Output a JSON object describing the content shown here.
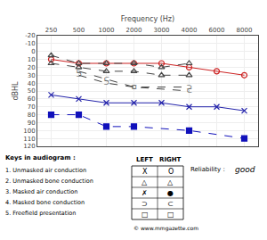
{
  "chart_data": {
    "type": "line",
    "xlabel": "Frequency (Hz)",
    "ylabel": "dBHL",
    "categories": [
      250,
      500,
      1000,
      2000,
      3000,
      4000,
      6000,
      8000
    ],
    "ylim": [
      120,
      -20
    ],
    "yticks": [
      -20,
      -10,
      0,
      10,
      20,
      30,
      40,
      50,
      60,
      70,
      80,
      90,
      100,
      110,
      120
    ],
    "grid": true,
    "series": [
      {
        "x": [
          250,
          500,
          1000,
          2000,
          3000,
          4000,
          6000,
          8000
        ],
        "values": [
          10,
          15,
          15,
          15,
          15,
          20,
          25,
          30
        ],
        "color": "#cc2222",
        "marker": "circle",
        "line_style": "solid"
      },
      {
        "x": [
          250,
          500,
          1000,
          2000,
          3000,
          4000,
          6000,
          8000
        ],
        "values": [
          55,
          60,
          65,
          65,
          65,
          70,
          70,
          75
        ],
        "color": "#2222aa",
        "marker": "x",
        "line_style": "solid"
      },
      {
        "x": [
          250,
          500,
          1000,
          2000,
          3000,
          4000
        ],
        "values": [
          5,
          15,
          15,
          15,
          20,
          15
        ],
        "color": "#444444",
        "marker": "triangle",
        "line_style": "dashed"
      },
      {
        "x": [
          250,
          500,
          1000,
          2000,
          3000,
          4000
        ],
        "values": [
          15,
          20,
          25,
          25,
          30,
          30
        ],
        "color": "#444444",
        "marker": "triangle",
        "line_style": "dashed"
      },
      {
        "x": [
          250,
          500,
          1000,
          2000,
          4000,
          8000
        ],
        "values": [
          80,
          80,
          95,
          95,
          100,
          110
        ],
        "color": "#1111bb",
        "marker": "square",
        "line_style": "dashed"
      },
      {
        "x": [
          500,
          1000,
          2000,
          4000
        ],
        "values": [
          30,
          40,
          45,
          45
        ],
        "color": "#444444",
        "marker": "⊃",
        "line_style": "dashed"
      },
      {
        "x": [
          500,
          1000,
          2000,
          4000
        ],
        "values": [
          25,
          35,
          45,
          50
        ],
        "color": "#444444",
        "marker": "⊂",
        "line_style": "dashed"
      }
    ],
    "annotations": {
      "heading": "Keys in audiogram :",
      "legend_keys": [
        "1. Unmasked air conduction",
        "2. Unmasked bone conduction",
        "3. Masked air conduction",
        "4. Masked bone conduction",
        "5. Freefield presentation"
      ],
      "columns": [
        "LEFT",
        "RIGHT"
      ],
      "legend_left": [
        "X",
        "△",
        "✗",
        "⊃",
        "□"
      ],
      "legend_right": [
        "O",
        "△",
        "●",
        "⊂",
        "□"
      ],
      "reliability": [
        "Reliability :",
        "good"
      ],
      "watermark": "© www.mmgazette.com"
    }
  }
}
